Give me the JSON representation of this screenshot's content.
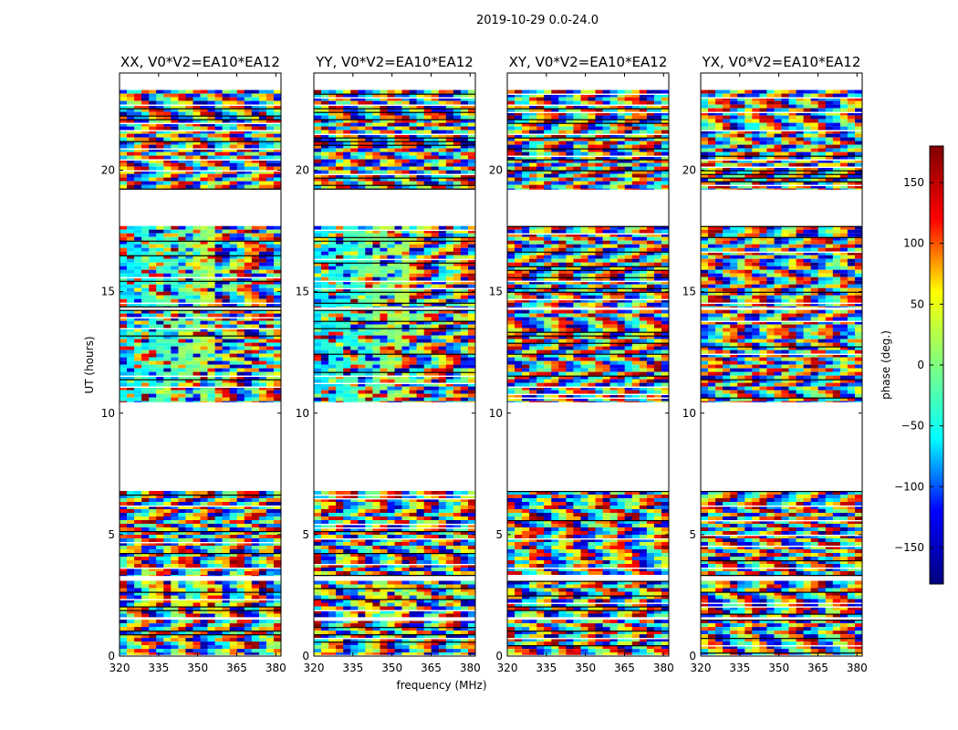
{
  "suptitle": "2019-10-29 0.0-24.0",
  "chart_data": {
    "type": "heatmap",
    "xlabel": "frequency (MHz)",
    "ylabel": "UT (hours)",
    "xlim": [
      320,
      382
    ],
    "ylim": [
      0,
      24
    ],
    "xticks": [
      320,
      335,
      350,
      365,
      380
    ],
    "yticks": [
      0,
      5,
      10,
      15,
      20
    ],
    "panels": [
      {
        "title": "XX, V0*V2=EA10*EA12",
        "pol": "XX"
      },
      {
        "title": "YY, V0*V2=EA10*EA12",
        "pol": "YY"
      },
      {
        "title": "XY, V0*V2=EA10*EA12",
        "pol": "XY"
      },
      {
        "title": "YX, V0*V2=EA10*EA12",
        "pol": "YX"
      }
    ],
    "data_blocks_hours": [
      [
        0.05,
        1.5
      ],
      [
        1.6,
        3.1
      ],
      [
        3.3,
        6.8
      ],
      [
        10.45,
        14.25
      ],
      [
        14.35,
        17.7
      ],
      [
        19.2,
        23.3
      ]
    ],
    "colorbar": {
      "label": "phase (deg.)",
      "range": [
        -180,
        180
      ],
      "ticks": [
        -150,
        -100,
        -50,
        0,
        50,
        100,
        150
      ],
      "tick_labels": [
        "−150",
        "−100",
        "−50",
        "0",
        "50",
        "100",
        "150"
      ],
      "colormap": "jet",
      "colors": [
        "#000080",
        "#0000ff",
        "#00ffff",
        "#80ff80",
        "#ffff00",
        "#ff0000",
        "#800000"
      ]
    }
  }
}
